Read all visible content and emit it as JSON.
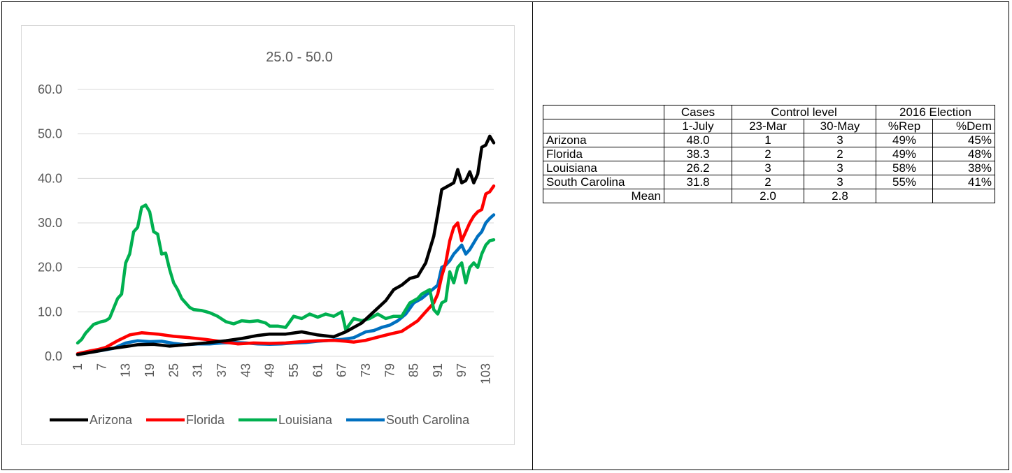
{
  "chart_data": {
    "type": "line",
    "title": "25.0  - 50.0",
    "ylim": [
      0,
      60
    ],
    "yticks": [
      "0.0",
      "10.0",
      "20.0",
      "30.0",
      "40.0",
      "50.0",
      "60.0"
    ],
    "xticks": [
      "1",
      "7",
      "13",
      "19",
      "25",
      "31",
      "37",
      "43",
      "49",
      "55",
      "61",
      "67",
      "73",
      "79",
      "85",
      "91",
      "97",
      "103"
    ],
    "x_start": 1,
    "x_end": 105,
    "grid": true,
    "legend_position": "bottom",
    "series": [
      {
        "name": "Arizona",
        "color": "#000000",
        "points": [
          [
            1,
            0.4
          ],
          [
            5,
            1.0
          ],
          [
            9,
            1.7
          ],
          [
            13,
            2.2
          ],
          [
            16,
            2.6
          ],
          [
            20,
            2.7
          ],
          [
            24,
            2.3
          ],
          [
            28,
            2.6
          ],
          [
            33,
            3.0
          ],
          [
            38,
            3.5
          ],
          [
            42,
            4.0
          ],
          [
            46,
            4.7
          ],
          [
            49,
            5.0
          ],
          [
            53,
            5.0
          ],
          [
            57,
            5.5
          ],
          [
            61,
            4.8
          ],
          [
            65,
            4.4
          ],
          [
            68,
            5.5
          ],
          [
            70,
            6.5
          ],
          [
            72,
            7.5
          ],
          [
            75,
            10.0
          ],
          [
            78,
            12.5
          ],
          [
            80,
            15.0
          ],
          [
            82,
            16.0
          ],
          [
            84,
            17.5
          ],
          [
            86,
            18.0
          ],
          [
            88,
            21.0
          ],
          [
            90,
            27.0
          ],
          [
            91,
            32.0
          ],
          [
            92,
            37.5
          ],
          [
            94,
            38.5
          ],
          [
            95,
            39.0
          ],
          [
            96,
            42.0
          ],
          [
            97,
            39.0
          ],
          [
            98,
            39.5
          ],
          [
            99,
            41.5
          ],
          [
            100,
            39.0
          ],
          [
            101,
            41.0
          ],
          [
            102,
            47.0
          ],
          [
            103,
            47.5
          ],
          [
            104,
            49.5
          ],
          [
            105,
            48.0
          ]
        ]
      },
      {
        "name": "Florida",
        "color": "#ff0000",
        "points": [
          [
            1,
            0.6
          ],
          [
            4,
            1.2
          ],
          [
            6,
            1.5
          ],
          [
            8,
            2.0
          ],
          [
            11,
            3.5
          ],
          [
            14,
            4.8
          ],
          [
            17,
            5.3
          ],
          [
            21,
            5.0
          ],
          [
            25,
            4.5
          ],
          [
            29,
            4.2
          ],
          [
            33,
            3.8
          ],
          [
            37,
            3.3
          ],
          [
            41,
            2.8
          ],
          [
            45,
            3.0
          ],
          [
            49,
            2.9
          ],
          [
            53,
            3.0
          ],
          [
            57,
            3.3
          ],
          [
            61,
            3.5
          ],
          [
            65,
            3.6
          ],
          [
            68,
            3.4
          ],
          [
            70,
            3.2
          ],
          [
            73,
            3.6
          ],
          [
            76,
            4.3
          ],
          [
            79,
            5.0
          ],
          [
            82,
            5.6
          ],
          [
            84,
            6.8
          ],
          [
            86,
            8.0
          ],
          [
            88,
            10.0
          ],
          [
            90,
            12.0
          ],
          [
            91,
            14.0
          ],
          [
            92,
            18.0
          ],
          [
            93,
            21.0
          ],
          [
            94,
            26.0
          ],
          [
            95,
            29.0
          ],
          [
            96,
            30.0
          ],
          [
            97,
            26.0
          ],
          [
            98,
            28.0
          ],
          [
            99,
            30.0
          ],
          [
            100,
            31.5
          ],
          [
            101,
            32.5
          ],
          [
            102,
            33.0
          ],
          [
            103,
            36.5
          ],
          [
            104,
            37.0
          ],
          [
            105,
            38.3
          ]
        ]
      },
      {
        "name": "Louisiana",
        "color": "#00b050",
        "points": [
          [
            1,
            3.0
          ],
          [
            2,
            3.8
          ],
          [
            3,
            5.2
          ],
          [
            4,
            6.2
          ],
          [
            5,
            7.2
          ],
          [
            7,
            7.8
          ],
          [
            8,
            8.0
          ],
          [
            9,
            8.6
          ],
          [
            11,
            13.0
          ],
          [
            12,
            14.0
          ],
          [
            13,
            21.0
          ],
          [
            14,
            23.0
          ],
          [
            15,
            28.0
          ],
          [
            16,
            29.0
          ],
          [
            17,
            33.5
          ],
          [
            18,
            34.0
          ],
          [
            19,
            32.5
          ],
          [
            20,
            28.0
          ],
          [
            21,
            27.5
          ],
          [
            22,
            23.0
          ],
          [
            23,
            23.2
          ],
          [
            24,
            19.5
          ],
          [
            25,
            16.5
          ],
          [
            26,
            15.0
          ],
          [
            27,
            13.0
          ],
          [
            28,
            12.0
          ],
          [
            29,
            11.0
          ],
          [
            30,
            10.5
          ],
          [
            32,
            10.3
          ],
          [
            34,
            9.8
          ],
          [
            36,
            9.0
          ],
          [
            38,
            7.8
          ],
          [
            40,
            7.3
          ],
          [
            42,
            8.0
          ],
          [
            44,
            7.8
          ],
          [
            46,
            8.0
          ],
          [
            48,
            7.5
          ],
          [
            49,
            6.8
          ],
          [
            51,
            6.8
          ],
          [
            53,
            6.5
          ],
          [
            55,
            9.0
          ],
          [
            57,
            8.5
          ],
          [
            59,
            9.5
          ],
          [
            61,
            8.8
          ],
          [
            63,
            9.5
          ],
          [
            65,
            9.0
          ],
          [
            67,
            10.0
          ],
          [
            68,
            6.0
          ],
          [
            70,
            8.5
          ],
          [
            72,
            8.0
          ],
          [
            74,
            8.5
          ],
          [
            76,
            9.5
          ],
          [
            78,
            8.5
          ],
          [
            80,
            9.0
          ],
          [
            82,
            9.0
          ],
          [
            84,
            12.0
          ],
          [
            86,
            13.0
          ],
          [
            87,
            14.0
          ],
          [
            89,
            15.0
          ],
          [
            90,
            10.5
          ],
          [
            91,
            9.5
          ],
          [
            92,
            12.0
          ],
          [
            93,
            12.5
          ],
          [
            94,
            19.0
          ],
          [
            95,
            16.5
          ],
          [
            96,
            20.0
          ],
          [
            97,
            21.0
          ],
          [
            98,
            16.5
          ],
          [
            99,
            20.0
          ],
          [
            100,
            21.0
          ],
          [
            101,
            20.0
          ],
          [
            102,
            23.0
          ],
          [
            103,
            25.0
          ],
          [
            104,
            26.0
          ],
          [
            105,
            26.2
          ]
        ]
      },
      {
        "name": "South Carolina",
        "color": "#0070c0",
        "points": [
          [
            1,
            0.5
          ],
          [
            4,
            0.9
          ],
          [
            7,
            1.3
          ],
          [
            10,
            1.8
          ],
          [
            13,
            3.0
          ],
          [
            16,
            3.5
          ],
          [
            19,
            3.3
          ],
          [
            22,
            3.4
          ],
          [
            25,
            2.9
          ],
          [
            28,
            2.6
          ],
          [
            31,
            2.8
          ],
          [
            34,
            2.8
          ],
          [
            37,
            3.0
          ],
          [
            40,
            3.1
          ],
          [
            43,
            3.0
          ],
          [
            46,
            2.8
          ],
          [
            49,
            2.7
          ],
          [
            52,
            2.8
          ],
          [
            55,
            3.0
          ],
          [
            58,
            3.1
          ],
          [
            61,
            3.4
          ],
          [
            64,
            3.6
          ],
          [
            67,
            3.8
          ],
          [
            70,
            4.2
          ],
          [
            73,
            5.5
          ],
          [
            75,
            5.8
          ],
          [
            77,
            6.5
          ],
          [
            79,
            7.0
          ],
          [
            81,
            8.0
          ],
          [
            83,
            9.5
          ],
          [
            85,
            12.0
          ],
          [
            87,
            13.0
          ],
          [
            89,
            14.5
          ],
          [
            91,
            16.0
          ],
          [
            92,
            20.0
          ],
          [
            93,
            20.5
          ],
          [
            94,
            21.5
          ],
          [
            95,
            23.0
          ],
          [
            96,
            24.0
          ],
          [
            97,
            25.0
          ],
          [
            98,
            23.0
          ],
          [
            99,
            24.0
          ],
          [
            100,
            25.5
          ],
          [
            101,
            27.0
          ],
          [
            102,
            28.0
          ],
          [
            103,
            30.0
          ],
          [
            104,
            31.0
          ],
          [
            105,
            31.8
          ]
        ]
      }
    ]
  },
  "table": {
    "header1": {
      "blank": "",
      "cases": "Cases",
      "control": "Control level",
      "election": "2016 Election"
    },
    "header2": {
      "blank": "",
      "date": "1-July",
      "mar": "23-Mar",
      "may": "30-May",
      "rep": "%Rep",
      "dem": "%Dem"
    },
    "rows": [
      {
        "state": "Arizona",
        "cases": "48.0",
        "mar": "1",
        "may": "3",
        "rep": "49%",
        "dem": "45%"
      },
      {
        "state": "Florida",
        "cases": "38.3",
        "mar": "2",
        "may": "2",
        "rep": "49%",
        "dem": "48%"
      },
      {
        "state": "Louisiana",
        "cases": "26.2",
        "mar": "3",
        "may": "3",
        "rep": "58%",
        "dem": "38%"
      },
      {
        "state": "South Carolina",
        "cases": "31.8",
        "mar": "2",
        "may": "3",
        "rep": "55%",
        "dem": "41%"
      }
    ],
    "mean": {
      "label": "Mean",
      "cases": "",
      "mar": "2.0",
      "may": "2.8",
      "rep": "",
      "dem": ""
    }
  }
}
